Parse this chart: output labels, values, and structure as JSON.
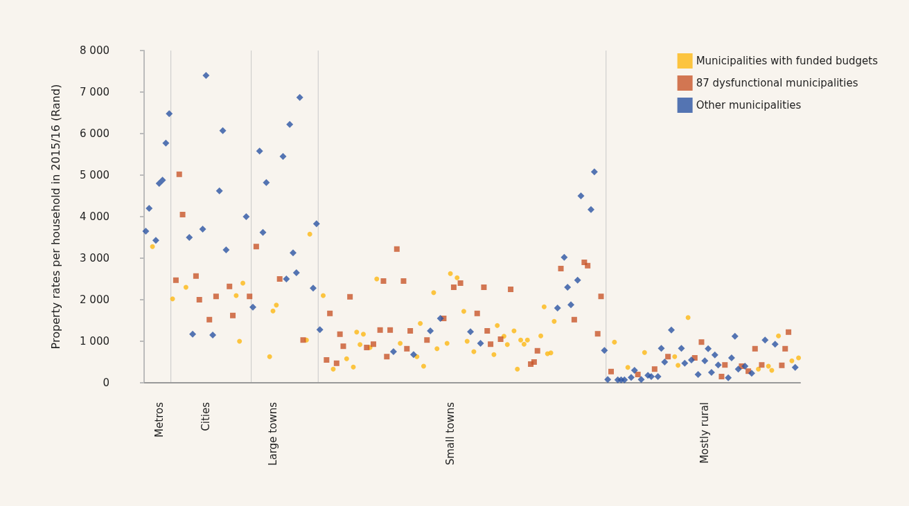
{
  "chart_data": {
    "type": "scatter",
    "ylabel": "Property rates per household in 2015/16 (Rand)",
    "categories": [
      null,
      null,
      null,
      null,
      "Metros",
      null,
      null,
      null,
      null,
      null,
      null,
      null,
      null,
      null,
      null,
      null,
      null,
      null,
      "Cities",
      null,
      null,
      null,
      null,
      null,
      null,
      null,
      null,
      null,
      null,
      null,
      null,
      null,
      null,
      null,
      null,
      null,
      null,
      null,
      "Large towns",
      null,
      null,
      null,
      null,
      null,
      null,
      null,
      null,
      null,
      null,
      null,
      null,
      null,
      null,
      null,
      null,
      null,
      null,
      null,
      null,
      null,
      null,
      null,
      null,
      null,
      null,
      null,
      null,
      null,
      null,
      null,
      null,
      null,
      null,
      null,
      null,
      null,
      null,
      null,
      null,
      null,
      null,
      null,
      null,
      null,
      null,
      null,
      null,
      null,
      null,
      null,
      null,
      "Small towns",
      null,
      null,
      null,
      null,
      null,
      null,
      null,
      null,
      null,
      null,
      null,
      null,
      null,
      null,
      null,
      null,
      null,
      null,
      null,
      null,
      null,
      null,
      null,
      null,
      null,
      null,
      null,
      null,
      null,
      null,
      null,
      null,
      null,
      null,
      null,
      null,
      null,
      null,
      null,
      null,
      null,
      null,
      null,
      null,
      null,
      null,
      null,
      null,
      null,
      null,
      null,
      null,
      null,
      null,
      null,
      null,
      null,
      null,
      null,
      null,
      null,
      null,
      null,
      null,
      null,
      null,
      null,
      null,
      null,
      null,
      null,
      null,
      null,
      null,
      null,
      "Mostly rural",
      null,
      null,
      null,
      null,
      null,
      null,
      null,
      null,
      null,
      null,
      null,
      null,
      null,
      null,
      null,
      null,
      null,
      null,
      null,
      null,
      null,
      null,
      null,
      null,
      null,
      null,
      null,
      null
    ],
    "ylim": [
      0,
      8000
    ],
    "yticks": [
      {
        "value": 0,
        "label": "0"
      },
      {
        "value": 1000,
        "label": "1 000"
      },
      {
        "value": 2000,
        "label": "2 000"
      },
      {
        "value": 3000,
        "label": "3 000"
      },
      {
        "value": 4000,
        "label": "4 000"
      },
      {
        "value": 5000,
        "label": "5 000"
      },
      {
        "value": 6000,
        "label": "6 000"
      },
      {
        "value": 7000,
        "label": "7 000"
      },
      {
        "value": 8000,
        "label": "8 000"
      }
    ],
    "grid": false,
    "legend": "top right",
    "series": [
      {
        "name": "Municipalities with funded budgets",
        "color": "#fcb813",
        "marker": "circle",
        "values": [
          null,
          null,
          3280,
          null,
          null,
          null,
          null,
          null,
          2020,
          null,
          null,
          null,
          2300,
          null,
          null,
          null,
          null,
          null,
          null,
          null,
          null,
          null,
          null,
          null,
          null,
          null,
          null,
          2100,
          1000,
          2400,
          null,
          null,
          null,
          null,
          null,
          null,
          null,
          630,
          1730,
          1870,
          null,
          null,
          null,
          null,
          null,
          null,
          null,
          null,
          1030,
          3580,
          null,
          null,
          null,
          2100,
          null,
          null,
          330,
          null,
          null,
          null,
          580,
          null,
          380,
          1220,
          920,
          1170,
          null,
          850,
          null,
          2500,
          null,
          null,
          null,
          null,
          null,
          null,
          950,
          null,
          null,
          null,
          null,
          630,
          1430,
          400,
          null,
          null,
          2170,
          820,
          null,
          null,
          950,
          2630,
          null,
          2530,
          null,
          1720,
          1000,
          null,
          750,
          null,
          null,
          null,
          null,
          null,
          680,
          1380,
          null,
          1120,
          920,
          null,
          1250,
          330,
          1030,
          930,
          1030,
          null,
          null,
          null,
          1130,
          1830,
          700,
          720,
          1480,
          null,
          null,
          null,
          null,
          null,
          null,
          null,
          null,
          null,
          null,
          null,
          null,
          null,
          null,
          null,
          null,
          null,
          980,
          null,
          null,
          null,
          370,
          null,
          null,
          null,
          null,
          730,
          null,
          null,
          null,
          null,
          null,
          null,
          null,
          null,
          630,
          420,
          null,
          null,
          1570,
          null,
          null,
          null,
          null,
          null,
          null,
          null,
          null,
          null,
          null,
          null,
          null,
          null,
          null,
          null,
          null,
          null,
          null,
          null,
          null,
          330,
          null,
          null,
          400,
          300,
          null,
          1130,
          null,
          null,
          null,
          530,
          null,
          600
        ]
      },
      {
        "name": "87 dysfunctional municipalities",
        "color": "#c8562a",
        "marker": "square",
        "values": [
          null,
          null,
          null,
          null,
          null,
          null,
          null,
          null,
          null,
          2470,
          5020,
          4050,
          null,
          null,
          null,
          2570,
          2000,
          null,
          null,
          1520,
          null,
          2080,
          null,
          null,
          null,
          2320,
          1620,
          null,
          null,
          null,
          null,
          2080,
          null,
          3280,
          null,
          null,
          null,
          null,
          null,
          null,
          2500,
          null,
          null,
          null,
          null,
          null,
          null,
          1030,
          null,
          null,
          null,
          null,
          null,
          null,
          550,
          1670,
          null,
          470,
          1170,
          880,
          null,
          2070,
          null,
          null,
          null,
          null,
          850,
          null,
          930,
          null,
          1270,
          2450,
          630,
          1270,
          null,
          3220,
          null,
          2450,
          820,
          1250,
          null,
          null,
          null,
          null,
          1030,
          null,
          null,
          null,
          null,
          1550,
          null,
          null,
          2300,
          null,
          2400,
          null,
          null,
          null,
          null,
          1670,
          null,
          2300,
          1250,
          930,
          null,
          null,
          1050,
          null,
          null,
          2250,
          null,
          null,
          null,
          null,
          null,
          450,
          500,
          770,
          null,
          null,
          null,
          null,
          null,
          null,
          2750,
          null,
          null,
          null,
          1520,
          null,
          null,
          2900,
          2820,
          null,
          null,
          1180,
          2080,
          null,
          null,
          270,
          null,
          null,
          null,
          null,
          null,
          null,
          null,
          200,
          null,
          null,
          null,
          null,
          330,
          null,
          null,
          null,
          630,
          null,
          null,
          null,
          null,
          null,
          null,
          null,
          600,
          null,
          980,
          null,
          null,
          null,
          null,
          null,
          150,
          430,
          null,
          null,
          null,
          null,
          400,
          null,
          280,
          null,
          820,
          null,
          430,
          null,
          null,
          null,
          null,
          null,
          420,
          820,
          1220,
          null,
          null,
          null
        ]
      },
      {
        "name": "Other municipalities",
        "color": "#2a54a3",
        "marker": "diamond",
        "values": [
          3650,
          4200,
          null,
          3430,
          4800,
          4880,
          5770,
          6480,
          null,
          null,
          null,
          null,
          null,
          3500,
          1170,
          null,
          null,
          3700,
          7400,
          null,
          1150,
          null,
          4620,
          6070,
          3200,
          null,
          null,
          null,
          null,
          null,
          4000,
          null,
          1820,
          null,
          5580,
          3620,
          4820,
          null,
          null,
          null,
          null,
          5450,
          2500,
          6220,
          3130,
          2650,
          6870,
          null,
          null,
          null,
          2280,
          3830,
          1280,
          null,
          null,
          null,
          null,
          null,
          null,
          null,
          null,
          null,
          null,
          null,
          null,
          null,
          null,
          null,
          null,
          null,
          null,
          null,
          null,
          null,
          750,
          null,
          null,
          null,
          null,
          null,
          680,
          null,
          null,
          null,
          null,
          1250,
          null,
          null,
          1550,
          null,
          null,
          null,
          null,
          null,
          null,
          null,
          null,
          1230,
          null,
          null,
          950,
          null,
          null,
          null,
          null,
          null,
          null,
          null,
          null,
          null,
          null,
          null,
          null,
          null,
          null,
          null,
          null,
          null,
          null,
          null,
          null,
          null,
          null,
          1800,
          null,
          3020,
          2300,
          1880,
          null,
          2470,
          4500,
          null,
          null,
          4170,
          5080,
          null,
          null,
          780,
          80,
          null,
          null,
          70,
          70,
          70,
          null,
          130,
          300,
          null,
          80,
          null,
          180,
          150,
          null,
          150,
          830,
          500,
          null,
          1270,
          null,
          null,
          830,
          470,
          null,
          550,
          null,
          200,
          null,
          530,
          820,
          250,
          670,
          430,
          null,
          null,
          120,
          600,
          1120,
          330,
          null,
          400,
          null,
          230,
          null,
          null,
          null,
          1030,
          null,
          null,
          930,
          null,
          null,
          null,
          null,
          null,
          370,
          null
        ]
      }
    ]
  }
}
